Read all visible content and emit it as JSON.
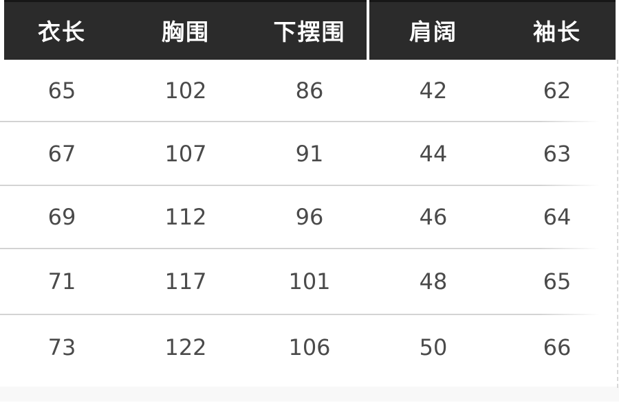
{
  "colors": {
    "header_bg": "#2b2b2b",
    "header_top_edge": "#171717",
    "header_text": "#ffffff",
    "body_text": "#4a4a4a",
    "divider": "#d3d3d3",
    "footer_strip": "#f8f8f8",
    "page_bg": "#ffffff"
  },
  "chart_data": {
    "type": "table",
    "columns": [
      "衣长",
      "胸围",
      "下摆围",
      "肩阔",
      "袖长"
    ],
    "rows": [
      [
        65,
        102,
        86,
        42,
        62
      ],
      [
        67,
        107,
        91,
        44,
        63
      ],
      [
        69,
        112,
        96,
        46,
        64
      ],
      [
        71,
        117,
        101,
        48,
        65
      ],
      [
        73,
        122,
        106,
        50,
        66
      ]
    ]
  }
}
